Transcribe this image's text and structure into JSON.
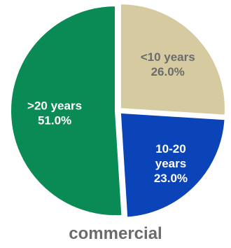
{
  "chart_data": {
    "type": "pie",
    "title": "commercial",
    "categories": [
      "<10 years",
      "10-20 years",
      ">20 years"
    ],
    "values": [
      26.0,
      23.0,
      51.0
    ],
    "value_labels": [
      "26.0%",
      "23.0%",
      "51.0%"
    ],
    "label_lines": [
      [
        "<10 years",
        "26.0%"
      ],
      [
        "10-20",
        "years",
        "23.0%"
      ],
      [
        ">20 years",
        "51.0%"
      ]
    ],
    "colors": [
      "#d6cba0",
      "#0a44b8",
      "#0a8a55"
    ],
    "label_colors": [
      "#6b6b6b",
      "#ffffff",
      "#ffffff"
    ],
    "start_angle_deg": 0,
    "direction": "clockwise",
    "exploded": true,
    "legend": "none"
  },
  "colors": {
    "title_text": "#6b6b6b",
    "background": "#ffffff"
  }
}
